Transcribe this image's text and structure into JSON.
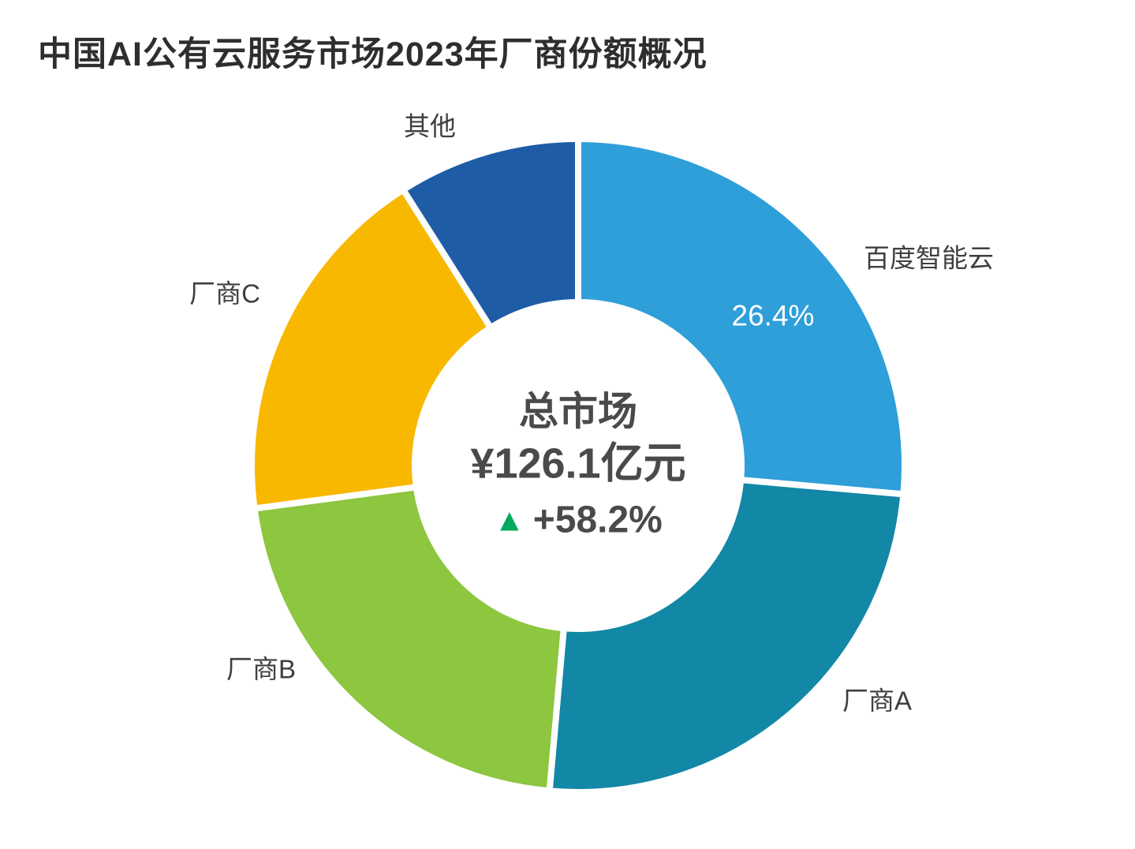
{
  "title": "中国AI公有云服务市场2023年厂商份额概况",
  "chart_data": {
    "type": "pie",
    "subtype": "donut",
    "title": "中国AI公有云服务市场2023年厂商份额概况",
    "start_angle_deg": 0,
    "direction": "clockwise",
    "legend": "none",
    "segments": [
      {
        "label": "百度智能云",
        "value_pct": 26.4,
        "value_label": "26.4%",
        "color": "#2E9FD9"
      },
      {
        "label": "厂商A",
        "value_pct": 25.0,
        "value_label": "",
        "color": "#1387A6"
      },
      {
        "label": "厂商B",
        "value_pct": 21.5,
        "value_label": "",
        "color": "#8DC63F"
      },
      {
        "label": "厂商C",
        "value_pct": 18.1,
        "value_label": "",
        "color": "#F8B800"
      },
      {
        "label": "其他",
        "value_pct": 9.0,
        "value_label": "",
        "color": "#1E5CA5"
      }
    ],
    "center": {
      "line1": "总市场",
      "line2": "¥126.1亿元",
      "triangle_icon": "▲",
      "line3": "+58.2%"
    },
    "colors": {
      "growth_green": "#00A95C",
      "center_text_gray": "#4a4a4a",
      "value_label_white": "#ffffff"
    }
  }
}
